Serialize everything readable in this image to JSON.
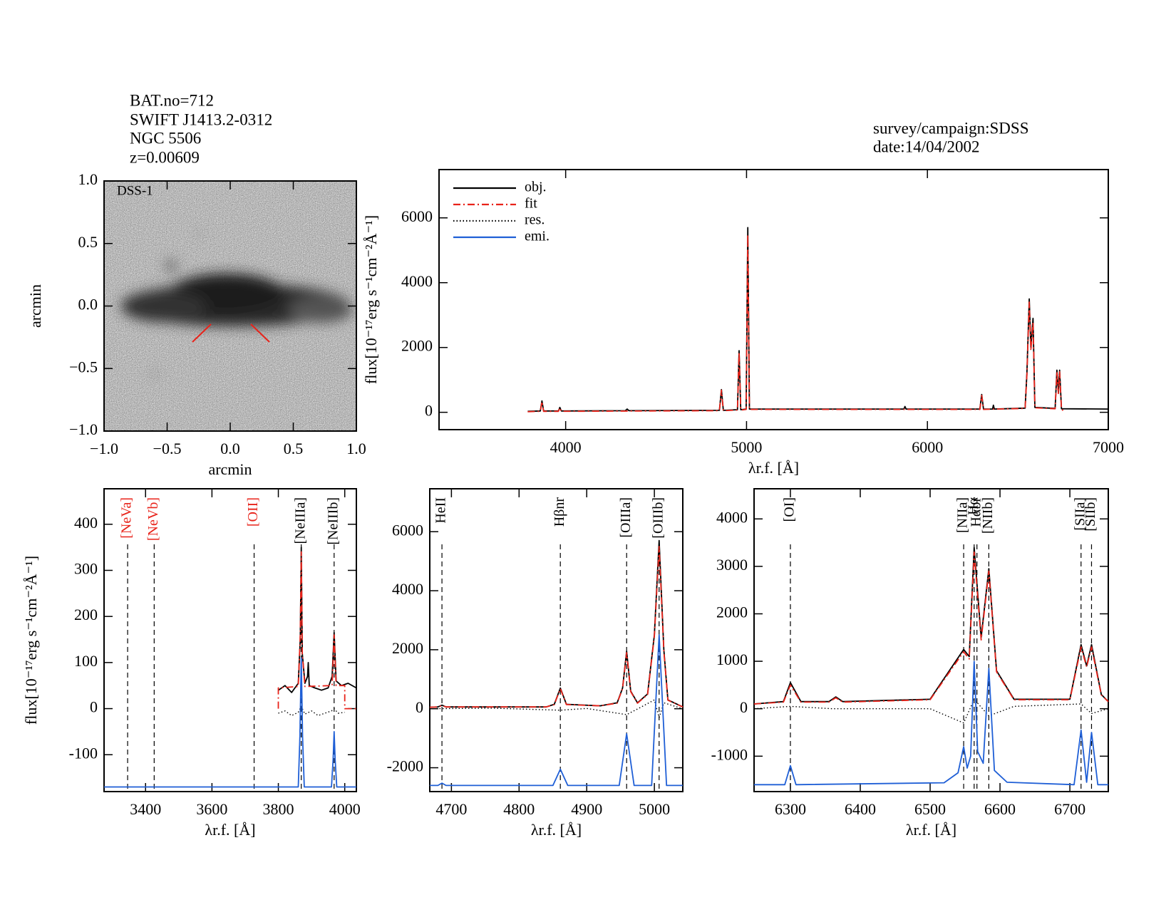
{
  "header": {
    "lines": [
      "BAT.no=712",
      "SWIFT J1413.2-0312",
      "NGC 5506",
      "z=0.00609"
    ],
    "survey": "survey/campaign:SDSS",
    "date": "date:14/04/2002"
  },
  "chart_data": [
    {
      "type": "image",
      "label": "DSS-1",
      "xlabel": "arcmin",
      "ylabel": "arcmin",
      "xlim": [
        -1,
        1
      ],
      "ylim": [
        -1,
        1
      ],
      "xticks": [
        {
          "value": -1,
          "label": "−1.0"
        },
        {
          "value": -0.5,
          "label": "−0.5"
        },
        {
          "value": 0,
          "label": "0.0"
        },
        {
          "value": 0.5,
          "label": "0.5"
        },
        {
          "value": 1,
          "label": "1.0"
        }
      ],
      "yticks": [
        {
          "value": -1,
          "label": "−1.0"
        },
        {
          "value": -0.5,
          "label": "−0.5"
        },
        {
          "value": 0,
          "label": "0.0"
        },
        {
          "value": 0.5,
          "label": "0.5"
        },
        {
          "value": 1,
          "label": "1.0"
        }
      ]
    },
    {
      "type": "line",
      "xlabel": "λr.f. [Å]",
      "ylabel": "flux[10⁻¹⁷erg s⁻¹cm⁻²Å⁻¹]",
      "xlim": [
        3300,
        7000
      ],
      "ylim": [
        -535,
        7490
      ],
      "xticks": [
        4000,
        5000,
        6000,
        7000
      ],
      "yticks": [
        0,
        2000,
        4000,
        6000
      ],
      "legend": "upper left",
      "series": [
        {
          "name": "obj.",
          "color": "#000000",
          "dash": "solid",
          "x": [
            3790,
            3860,
            3869,
            3878,
            3960,
            3968,
            3976,
            4330,
            4340,
            4350,
            4850,
            4861,
            4872,
            4950,
            4959,
            4968,
            4998,
            5007,
            5016,
            5870,
            5876,
            5882,
            6290,
            6300,
            6310,
            6360,
            6365,
            6370,
            6540,
            6550,
            6563,
            6572,
            6584,
            6594,
            6706,
            6716,
            6724,
            6731,
            6741,
            7000
          ],
          "values": [
            30,
            40,
            350,
            40,
            40,
            150,
            40,
            50,
            100,
            50,
            60,
            700,
            60,
            80,
            1900,
            80,
            100,
            5700,
            100,
            100,
            180,
            100,
            100,
            550,
            100,
            100,
            220,
            100,
            130,
            1200,
            3500,
            2000,
            2900,
            150,
            120,
            1300,
            600,
            1300,
            110,
            100
          ]
        },
        {
          "name": "fit",
          "color": "#e8231a",
          "dash": "dashdot",
          "x": [
            3790,
            3860,
            3869,
            3878,
            3960,
            3968,
            3976,
            4850,
            4861,
            4872,
            4950,
            4959,
            4968,
            4998,
            5007,
            5016,
            6290,
            6300,
            6310,
            6540,
            6550,
            6563,
            6572,
            6584,
            6594,
            6706,
            6716,
            6724,
            6731,
            6741,
            6760
          ],
          "values": [
            20,
            30,
            330,
            30,
            30,
            140,
            30,
            50,
            680,
            50,
            70,
            1850,
            70,
            90,
            5500,
            90,
            90,
            520,
            90,
            120,
            1150,
            3400,
            1900,
            2800,
            140,
            110,
            1250,
            580,
            1250,
            100,
            0
          ]
        },
        {
          "name": "res.",
          "color": "#000000",
          "dash": "dotted",
          "x": [],
          "values": []
        },
        {
          "name": "emi.",
          "color": "#1f5fd6",
          "dash": "solid",
          "x": [],
          "values": []
        }
      ]
    },
    {
      "type": "line",
      "xlabel": "λr.f. [Å]",
      "ylabel": "flux[10⁻¹⁷erg s⁻¹cm⁻²Å⁻¹]",
      "xlim": [
        3275,
        4035
      ],
      "ylim": [
        -180,
        477
      ],
      "xticks": [
        3400,
        3600,
        3800,
        4000
      ],
      "yticks": [
        -100,
        0,
        100,
        200,
        300,
        400
      ],
      "lines": [
        {
          "label": "[NeVa]",
          "x": 3346,
          "color": "#e8231a"
        },
        {
          "label": "[NeVb]",
          "x": 3426,
          "color": "#e8231a"
        },
        {
          "label": "[OII]",
          "x": 3727,
          "color": "#e8231a"
        },
        {
          "label": "[NeIIIa]",
          "x": 3869,
          "color": "#000000"
        },
        {
          "label": "[NeIIIb]",
          "x": 3968,
          "color": "#000000"
        }
      ],
      "series": [
        {
          "color": "#000000",
          "dash": "solid",
          "x": [
            3800,
            3820,
            3840,
            3860,
            3866,
            3869,
            3872,
            3880,
            3888,
            3890,
            3893,
            3910,
            3930,
            3950,
            3962,
            3968,
            3974,
            3990,
            4010,
            4035
          ],
          "values": [
            40,
            50,
            35,
            55,
            150,
            350,
            120,
            55,
            70,
            100,
            50,
            45,
            40,
            45,
            70,
            165,
            60,
            50,
            55,
            45
          ]
        },
        {
          "color": "#e8231a",
          "dash": "dashdot",
          "x": [
            3800,
            3800,
            3860,
            3866,
            3869,
            3872,
            3880,
            3962,
            3968,
            3974,
            4000,
            4000,
            4035
          ],
          "values": [
            0,
            45,
            48,
            160,
            340,
            120,
            48,
            50,
            160,
            50,
            50,
            0,
            0
          ]
        },
        {
          "color": "#000000",
          "dash": "dotted",
          "x": [
            3800,
            3820,
            3840,
            3860,
            3869,
            3880,
            3900,
            3920,
            3940,
            3960,
            3968,
            3980,
            4000
          ],
          "values": [
            -10,
            -5,
            -15,
            -8,
            5,
            -12,
            -5,
            -15,
            -10,
            -5,
            0,
            -10,
            -8
          ]
        },
        {
          "color": "#1f5fd6",
          "dash": "solid",
          "x": [
            3275,
            3860,
            3865,
            3869,
            3873,
            3878,
            3960,
            3965,
            3968,
            3971,
            3976,
            4035
          ],
          "values": [
            -170,
            -170,
            -60,
            110,
            -60,
            -170,
            -170,
            -110,
            -50,
            -110,
            -170,
            -170
          ]
        }
      ]
    },
    {
      "type": "line",
      "xlabel": "λr.f. [Å]",
      "xlim": [
        4668,
        5042
      ],
      "ylim": [
        -2808,
        7455
      ],
      "xticks": [
        4700,
        4800,
        4900,
        5000
      ],
      "yticks": [
        -2000,
        0,
        2000,
        4000,
        6000
      ],
      "lines": [
        {
          "label": "HeII",
          "x": 4686,
          "color": "#000000"
        },
        {
          "label": "Hβnr",
          "x": 4861,
          "color": "#000000"
        },
        {
          "label": "[OIIIa]",
          "x": 4959,
          "color": "#000000"
        },
        {
          "label": "[OIIIb]",
          "x": 5007,
          "color": "#000000"
        }
      ],
      "series": [
        {
          "color": "#000000",
          "dash": "solid",
          "x": [
            4668,
            4680,
            4686,
            4692,
            4840,
            4852,
            4861,
            4870,
            4920,
            4945,
            4953,
            4959,
            4965,
            4975,
            4990,
            5000,
            5007,
            5014,
            5020,
            5042
          ],
          "values": [
            50,
            60,
            120,
            60,
            60,
            150,
            700,
            150,
            100,
            200,
            700,
            1950,
            600,
            200,
            500,
            2500,
            5700,
            2000,
            300,
            60
          ]
        },
        {
          "color": "#e8231a",
          "dash": "dashdot",
          "x": [
            4668,
            4680,
            4686,
            4692,
            4840,
            4852,
            4861,
            4870,
            4920,
            4945,
            4953,
            4959,
            4965,
            4975,
            4990,
            5000,
            5007,
            5014,
            5020,
            5042
          ],
          "values": [
            50,
            60,
            110,
            60,
            60,
            140,
            680,
            140,
            100,
            190,
            680,
            1900,
            580,
            190,
            480,
            2450,
            5500,
            1950,
            290,
            60
          ]
        },
        {
          "color": "#000000",
          "dash": "dotted",
          "x": [
            4668,
            4760,
            4861,
            4900,
            4959,
            4980,
            5000,
            5007,
            5014,
            5042
          ],
          "values": [
            0,
            20,
            -50,
            10,
            -200,
            50,
            300,
            -300,
            200,
            0
          ]
        },
        {
          "color": "#1f5fd6",
          "dash": "solid",
          "x": [
            4668,
            4680,
            4686,
            4692,
            4850,
            4861,
            4872,
            4948,
            4959,
            4970,
            4996,
            5007,
            5018,
            5042
          ],
          "values": [
            -2600,
            -2600,
            -2520,
            -2600,
            -2600,
            -2050,
            -2600,
            -2600,
            -850,
            -2600,
            -2600,
            2500,
            -2600,
            -2600
          ]
        }
      ]
    },
    {
      "type": "line",
      "xlabel": "λr.f. [Å]",
      "xlim": [
        6248,
        6755
      ],
      "ylim": [
        -1746,
        4635
      ],
      "xticks": [
        6300,
        6400,
        6500,
        6600,
        6700
      ],
      "yticks": [
        -1000,
        0,
        1000,
        2000,
        3000,
        4000
      ],
      "lines": [
        {
          "label": "[OI]",
          "x": 6300,
          "color": "#000000"
        },
        {
          "label": "[NIIa]",
          "x": 6548,
          "color": "#000000"
        },
        {
          "label": "Hα",
          "x": 6563,
          "color": "#000000"
        },
        {
          "label": "Hαbr",
          "x": 6567,
          "color": "#000000"
        },
        {
          "label": "[NIIb]",
          "x": 6584,
          "color": "#000000"
        },
        {
          "label": "[SIIa]",
          "x": 6716,
          "color": "#000000"
        },
        {
          "label": "[SIIb]",
          "x": 6731,
          "color": "#000000"
        }
      ],
      "series": [
        {
          "color": "#000000",
          "dash": "solid",
          "x": [
            6248,
            6290,
            6300,
            6315,
            6355,
            6365,
            6375,
            6500,
            6548,
            6556,
            6563,
            6573,
            6584,
            6595,
            6620,
            6700,
            6716,
            6724,
            6731,
            6745,
            6755
          ],
          "values": [
            100,
            150,
            550,
            150,
            150,
            250,
            150,
            200,
            1250,
            1100,
            3400,
            1500,
            2950,
            800,
            200,
            200,
            1350,
            900,
            1350,
            300,
            150
          ]
        },
        {
          "color": "#e8231a",
          "dash": "dashdot",
          "x": [
            6248,
            6290,
            6300,
            6315,
            6355,
            6365,
            6375,
            6500,
            6548,
            6556,
            6563,
            6573,
            6584,
            6595,
            6620,
            6700,
            6716,
            6724,
            6731,
            6745,
            6755
          ],
          "values": [
            100,
            140,
            500,
            140,
            140,
            230,
            140,
            190,
            1200,
            1050,
            3300,
            1450,
            2900,
            780,
            190,
            190,
            1300,
            880,
            1300,
            290,
            150
          ]
        },
        {
          "color": "#000000",
          "dash": "dotted",
          "x": [
            6248,
            6300,
            6360,
            6500,
            6548,
            6563,
            6584,
            6620,
            6716,
            6731,
            6755
          ],
          "values": [
            0,
            50,
            0,
            0,
            -300,
            200,
            -150,
            50,
            100,
            -100,
            0
          ]
        },
        {
          "color": "#1f5fd6",
          "dash": "solid",
          "x": [
            6248,
            6292,
            6300,
            6308,
            6520,
            6540,
            6548,
            6553,
            6558,
            6563,
            6568,
            6576,
            6584,
            6592,
            6610,
            6706,
            6716,
            6724,
            6731,
            6740,
            6755
          ],
          "values": [
            -1600,
            -1600,
            -1200,
            -1600,
            -1560,
            -1350,
            -800,
            -1250,
            -1000,
            1000,
            -900,
            -1150,
            850,
            -1300,
            -1550,
            -1600,
            -450,
            -1550,
            -500,
            -1600,
            -1600
          ]
        }
      ]
    }
  ]
}
